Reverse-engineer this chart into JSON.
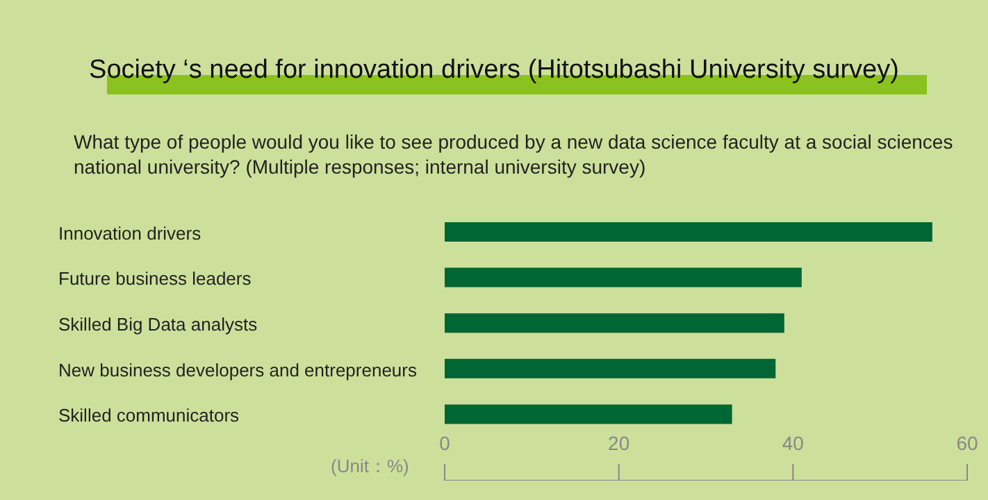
{
  "chart_data": {
    "type": "bar",
    "orientation": "horizontal",
    "title": "Society ‘s need for innovation drivers (Hitotsubashi University survey)",
    "subtitle": "What type of people would you like to see produced by a new data science faculty at a social sciences national university? (Multiple responses; internal university survey)",
    "categories": [
      "Innovation drivers",
      "Future business leaders",
      "Skilled Big Data analysts",
      "New business developers and entrepreneurs",
      "Skilled communicators"
    ],
    "values": [
      56,
      41,
      39,
      38,
      33
    ],
    "color": "#006633",
    "xlim": [
      0,
      60
    ],
    "xticks": [
      0,
      20,
      40,
      60
    ],
    "annotations": [
      "(Unit：%)"
    ]
  }
}
